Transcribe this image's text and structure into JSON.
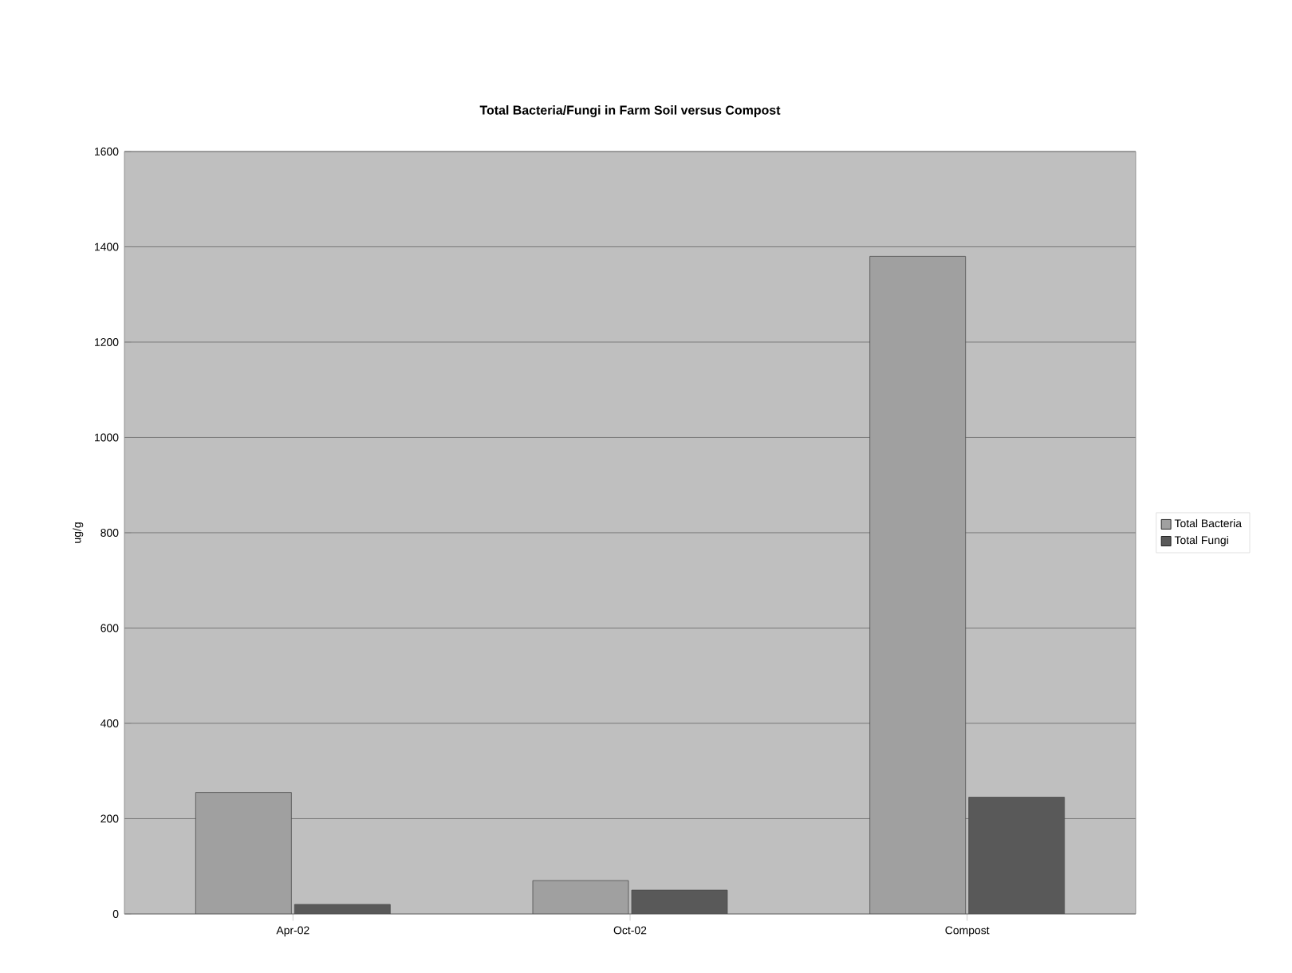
{
  "chart_data": {
    "type": "bar",
    "title": "Total Bacteria/Fungi in Farm Soil versus Compost",
    "ylabel": "ug/g",
    "categories": [
      "Apr-02",
      "Oct-02",
      "Compost"
    ],
    "series": [
      {
        "name": "Total Bacteria",
        "color": "#a0a0a0",
        "values": [
          255,
          70,
          1380
        ]
      },
      {
        "name": "Total Fungi",
        "color": "#595959",
        "values": [
          20,
          50,
          245
        ]
      }
    ],
    "ylim": [
      0,
      1600
    ],
    "yticks": [
      0,
      200,
      400,
      600,
      800,
      1000,
      1200,
      1400,
      1600
    ],
    "grid": "y",
    "legend": "right"
  }
}
